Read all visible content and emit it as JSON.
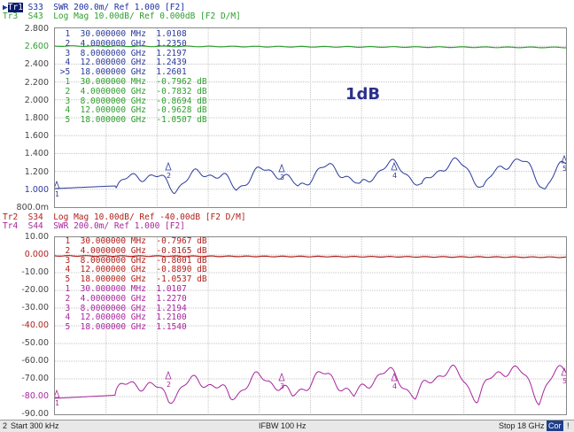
{
  "colors": {
    "s33": "#2b3a9a",
    "s43": "#2e9e2e",
    "s34": "#b0201c",
    "s44": "#a8259c",
    "grid": "#b8b8b8",
    "status_bg": "#e8e8e8"
  },
  "top_panel": {
    "header_line1_tag": "Tr1",
    "header_line1": " S33  SWR 200.0m/ Ref 1.000 [F2]",
    "header_line2": "Tr3  S43  Log Mag 10.00dB/ Ref 0.000dB [F2 D/M]",
    "y_ticks": [
      "2.800",
      "2.600",
      "2.400",
      "2.200",
      "2.000",
      "1.800",
      "1.600",
      "1.400",
      "1.200",
      "1.000",
      "800.0m"
    ],
    "markers_s33": [
      {
        "n": "1",
        "freq": "30.000000 MHz",
        "val": "1.0108"
      },
      {
        "n": "2",
        "freq": "4.0000000 GHz",
        "val": "1.2350"
      },
      {
        "n": "3",
        "freq": "8.0000000 GHz",
        "val": "1.2197"
      },
      {
        "n": "4",
        "freq": "12.000000 GHz",
        "val": "1.2439"
      },
      {
        "n": ">5",
        "freq": "18.000000 GHz",
        "val": "1.2601"
      }
    ],
    "markers_s43": [
      {
        "n": "1",
        "freq": "30.000000 MHz",
        "val": "-0.7962 dB"
      },
      {
        "n": "2",
        "freq": "4.0000000 GHz",
        "val": "-0.7832 dB"
      },
      {
        "n": "3",
        "freq": "8.0000000 GHz",
        "val": "-0.8694 dB"
      },
      {
        "n": "4",
        "freq": "12.000000 GHz",
        "val": "-0.9628 dB"
      },
      {
        "n": "5",
        "freq": "18.000000 GHz",
        "val": "-1.0507 dB"
      }
    ],
    "annotation": "1dB"
  },
  "bottom_panel": {
    "header_line1": "Tr2  S34  Log Mag 10.00dB/ Ref -40.00dB [F2 D/M]",
    "header_line2": "Tr4  S44  SWR 200.0m/ Ref 1.000 [F2]",
    "y_ticks": [
      "10.00",
      "0.000",
      "-10.00",
      "-20.00",
      "-30.00",
      "-40.00",
      "-50.00",
      "-60.00",
      "-70.00",
      "-80.00",
      "-90.00"
    ],
    "markers_s34": [
      {
        "n": "1",
        "freq": "30.000000 MHz",
        "val": "-0.7967 dB"
      },
      {
        "n": "2",
        "freq": "4.0000000 GHz",
        "val": "-0.8165 dB"
      },
      {
        "n": "3",
        "freq": "8.0000000 GHz",
        "val": "-0.8001 dB"
      },
      {
        "n": "4",
        "freq": "12.000000 GHz",
        "val": "-0.8890 dB"
      },
      {
        "n": "5",
        "freq": "18.000000 GHz",
        "val": "-1.0537 dB"
      }
    ],
    "markers_s44": [
      {
        "n": "1",
        "freq": "30.000000 MHz",
        "val": "1.0107"
      },
      {
        "n": "2",
        "freq": "4.0000000 GHz",
        "val": "1.2270"
      },
      {
        "n": "3",
        "freq": "8.0000000 GHz",
        "val": "1.2194"
      },
      {
        "n": "4",
        "freq": "12.000000 GHz",
        "val": "1.2100"
      },
      {
        "n": "5",
        "freq": "18.000000 GHz",
        "val": "1.1540"
      }
    ]
  },
  "status_bar": {
    "channel": "2",
    "start": "Start 300 kHz",
    "ifbw": "IFBW 100 Hz",
    "stop": "Stop 18 GHz",
    "cor": "Cor",
    "flag": "!"
  }
}
